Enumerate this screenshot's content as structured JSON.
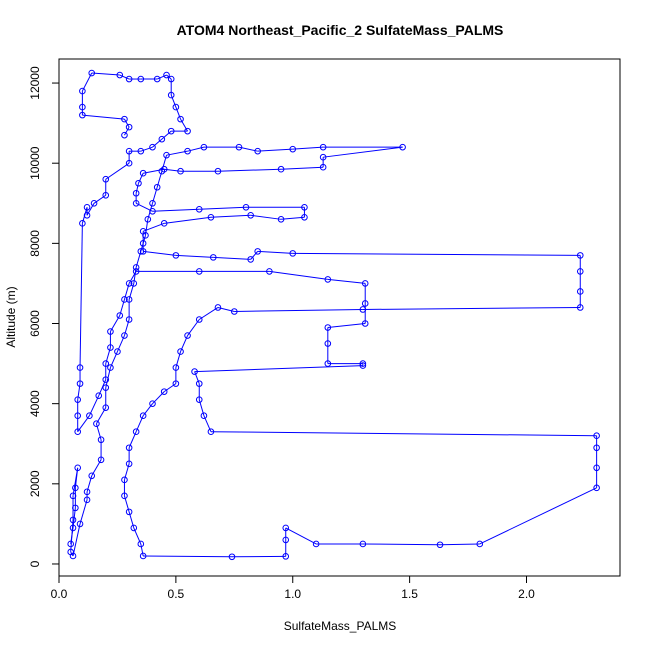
{
  "chart_data": {
    "type": "scatter",
    "title": "ATOM4 Northeast_Pacific_2 SulfateMass_PALMS",
    "xlabel": "SulfateMass_PALMS",
    "ylabel": "Altitude (m)",
    "xlim": [
      0,
      2.4
    ],
    "ylim": [
      -300,
      12600
    ],
    "xticks": [
      0,
      0.5,
      1,
      1.5,
      2
    ],
    "xtick_labels": [
      "0.0",
      "0.5",
      "1.0",
      "1.5",
      "2.0"
    ],
    "yticks": [
      0,
      2000,
      4000,
      6000,
      8000,
      10000,
      12000
    ],
    "ytick_labels": [
      "0",
      "2000",
      "4000",
      "6000",
      "8000",
      "10000",
      "12000"
    ],
    "grid": false,
    "legend": "none",
    "marker": "open-circle",
    "connected": true,
    "color": "#0000ff",
    "series": [
      {
        "points": [
          [
            0.05,
            500
          ],
          [
            0.06,
            900
          ],
          [
            0.07,
            1400
          ],
          [
            0.07,
            1900
          ],
          [
            0.08,
            2400
          ],
          [
            0.06,
            1700
          ],
          [
            0.06,
            1100
          ],
          [
            0.05,
            300
          ],
          [
            0.06,
            200
          ],
          [
            0.09,
            1000
          ],
          [
            0.12,
            1600
          ],
          [
            0.12,
            1800
          ],
          [
            0.14,
            2200
          ],
          [
            0.18,
            2600
          ],
          [
            0.18,
            3100
          ],
          [
            0.16,
            3500
          ],
          [
            0.2,
            3900
          ],
          [
            0.2,
            4400
          ],
          [
            0.22,
            4900
          ],
          [
            0.25,
            5300
          ],
          [
            0.28,
            5700
          ],
          [
            0.3,
            6100
          ],
          [
            0.3,
            6600
          ],
          [
            0.32,
            7000
          ],
          [
            0.33,
            7400
          ],
          [
            0.35,
            7800
          ],
          [
            0.37,
            8200
          ],
          [
            0.38,
            8600
          ],
          [
            0.4,
            9000
          ],
          [
            0.42,
            9400
          ],
          [
            0.44,
            9800
          ],
          [
            0.46,
            10200
          ],
          [
            0.55,
            10300
          ],
          [
            0.62,
            10400
          ],
          [
            0.77,
            10400
          ],
          [
            0.85,
            10300
          ],
          [
            1.0,
            10350
          ],
          [
            1.13,
            10400
          ],
          [
            1.47,
            10400
          ],
          [
            1.13,
            10150
          ],
          [
            1.13,
            9900
          ],
          [
            0.95,
            9850
          ],
          [
            0.68,
            9800
          ],
          [
            0.52,
            9800
          ],
          [
            0.45,
            9850
          ],
          [
            0.36,
            9750
          ],
          [
            0.34,
            9500
          ],
          [
            0.33,
            9250
          ],
          [
            0.33,
            9000
          ],
          [
            0.4,
            8800
          ],
          [
            0.6,
            8850
          ],
          [
            0.8,
            8900
          ],
          [
            1.05,
            8900
          ],
          [
            1.05,
            8650
          ],
          [
            0.95,
            8600
          ],
          [
            0.82,
            8700
          ],
          [
            0.65,
            8650
          ],
          [
            0.45,
            8500
          ],
          [
            0.36,
            8300
          ],
          [
            0.36,
            8000
          ],
          [
            0.36,
            7800
          ],
          [
            0.5,
            7700
          ],
          [
            0.66,
            7650
          ],
          [
            0.82,
            7600
          ],
          [
            0.85,
            7800
          ],
          [
            1.0,
            7750
          ],
          [
            2.23,
            7700
          ],
          [
            2.23,
            7300
          ],
          [
            2.23,
            6800
          ],
          [
            2.23,
            6400
          ],
          [
            1.3,
            6350
          ],
          [
            0.75,
            6300
          ],
          [
            0.68,
            6400
          ],
          [
            0.6,
            6100
          ],
          [
            0.55,
            5700
          ],
          [
            0.52,
            5300
          ],
          [
            0.5,
            4900
          ],
          [
            0.5,
            4500
          ],
          [
            0.45,
            4300
          ],
          [
            0.4,
            4000
          ],
          [
            0.36,
            3700
          ],
          [
            0.33,
            3300
          ],
          [
            0.3,
            2900
          ],
          [
            0.3,
            2500
          ],
          [
            0.28,
            2100
          ],
          [
            0.28,
            1700
          ],
          [
            0.3,
            1300
          ],
          [
            0.32,
            900
          ],
          [
            0.35,
            500
          ],
          [
            0.36,
            200
          ],
          [
            0.74,
            180
          ],
          [
            0.97,
            190
          ],
          [
            0.97,
            600
          ],
          [
            0.97,
            900
          ],
          [
            1.1,
            500
          ],
          [
            1.3,
            500
          ],
          [
            1.63,
            480
          ],
          [
            1.8,
            500
          ],
          [
            2.3,
            1900
          ],
          [
            2.3,
            2400
          ],
          [
            2.3,
            2900
          ],
          [
            2.3,
            3200
          ],
          [
            0.65,
            3300
          ],
          [
            0.62,
            3700
          ],
          [
            0.6,
            4100
          ],
          [
            0.6,
            4500
          ],
          [
            0.58,
            4800
          ],
          [
            1.3,
            4950
          ],
          [
            1.3,
            5000
          ],
          [
            1.15,
            5000
          ],
          [
            1.15,
            5500
          ],
          [
            1.15,
            5900
          ],
          [
            1.31,
            6000
          ],
          [
            1.31,
            6500
          ],
          [
            1.31,
            7000
          ],
          [
            1.15,
            7100
          ],
          [
            0.9,
            7300
          ],
          [
            0.6,
            7300
          ],
          [
            0.33,
            7300
          ],
          [
            0.3,
            7000
          ],
          [
            0.28,
            6600
          ],
          [
            0.26,
            6200
          ],
          [
            0.22,
            5800
          ],
          [
            0.22,
            5400
          ],
          [
            0.2,
            5000
          ],
          [
            0.2,
            4600
          ],
          [
            0.17,
            4200
          ],
          [
            0.13,
            3700
          ],
          [
            0.08,
            3300
          ],
          [
            0.08,
            3700
          ],
          [
            0.08,
            4100
          ],
          [
            0.09,
            4500
          ],
          [
            0.09,
            4900
          ],
          [
            0.1,
            8500
          ],
          [
            0.12,
            8900
          ],
          [
            0.12,
            8700
          ],
          [
            0.15,
            9000
          ],
          [
            0.2,
            9200
          ],
          [
            0.2,
            9600
          ],
          [
            0.3,
            10000
          ],
          [
            0.3,
            10300
          ],
          [
            0.35,
            10300
          ],
          [
            0.4,
            10400
          ],
          [
            0.44,
            10600
          ],
          [
            0.48,
            10800
          ],
          [
            0.55,
            10800
          ],
          [
            0.52,
            11100
          ],
          [
            0.5,
            11400
          ],
          [
            0.48,
            11700
          ],
          [
            0.48,
            12100
          ],
          [
            0.46,
            12200
          ],
          [
            0.42,
            12100
          ],
          [
            0.35,
            12100
          ],
          [
            0.3,
            12100
          ],
          [
            0.26,
            12200
          ],
          [
            0.14,
            12250
          ],
          [
            0.1,
            11800
          ],
          [
            0.1,
            11400
          ],
          [
            0.1,
            11200
          ],
          [
            0.28,
            11100
          ],
          [
            0.3,
            10900
          ],
          [
            0.28,
            10700
          ]
        ]
      }
    ]
  }
}
